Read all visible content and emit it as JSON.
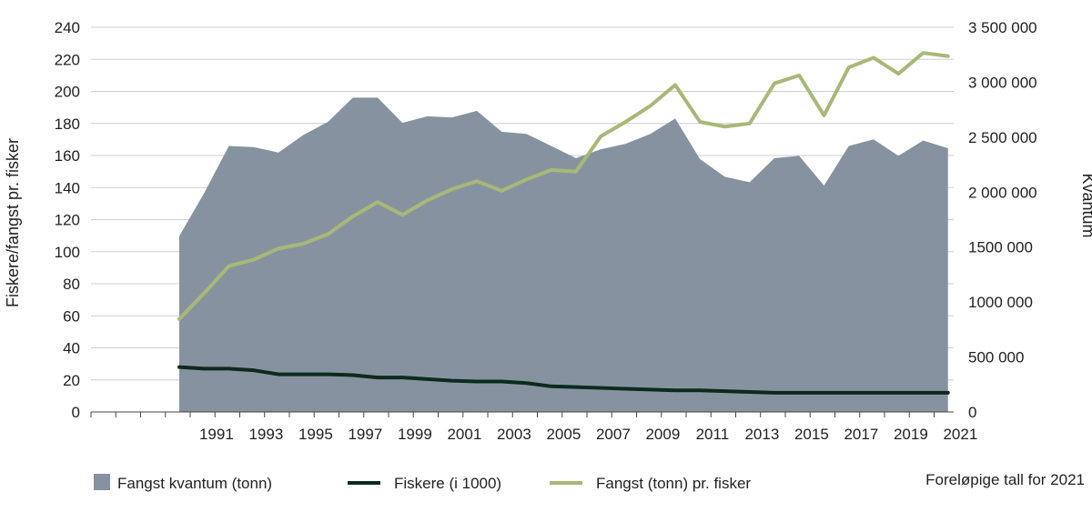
{
  "chart_data": {
    "type": "area+line",
    "years": [
      1990,
      1991,
      1992,
      1993,
      1994,
      1995,
      1996,
      1997,
      1998,
      1999,
      2000,
      2001,
      2002,
      2003,
      2004,
      2005,
      2006,
      2007,
      2008,
      2009,
      2010,
      2011,
      2012,
      2013,
      2014,
      2015,
      2016,
      2017,
      2018,
      2019,
      2020,
      2021
    ],
    "x_tick_labels": [
      "1991",
      "1993",
      "1995",
      "1997",
      "1999",
      "2001",
      "2003",
      "2005",
      "2007",
      "2009",
      "2011",
      "2013",
      "2015",
      "2017",
      "2019",
      "2021"
    ],
    "y_left": {
      "label": "Fiskere/fangst pr. fisker",
      "min": 0,
      "max": 240,
      "step": 20,
      "tick_labels": [
        "0",
        "20",
        "40",
        "60",
        "80",
        "100",
        "120",
        "140",
        "160",
        "180",
        "200",
        "220",
        "240"
      ]
    },
    "y_right": {
      "label": "Kvantum",
      "min": 0,
      "max": 3500000,
      "step": 500000,
      "tick_labels": [
        "0",
        "500 000",
        "1000 000",
        "1500 000",
        "2 000 000",
        "2 500 000",
        "3 000 000",
        "3 500 000"
      ]
    },
    "series": [
      {
        "name": "Fangst kvantum (tonn)",
        "type": "area",
        "axis": "right",
        "color": "#8792a0",
        "values": [
          1600000,
          1990000,
          2420000,
          2410000,
          2360000,
          2520000,
          2640000,
          2860000,
          2860000,
          2630000,
          2690000,
          2680000,
          2740000,
          2550000,
          2530000,
          2420000,
          2310000,
          2390000,
          2440000,
          2530000,
          2670000,
          2300000,
          2140000,
          2090000,
          2310000,
          2330000,
          2060000,
          2420000,
          2480000,
          2330000,
          2470000,
          2400000
        ]
      },
      {
        "name": "Fiskere (i 1000)",
        "type": "line",
        "axis": "left",
        "color": "#0d2a1e",
        "values": [
          28,
          27,
          27,
          26,
          23.5,
          23.5,
          23.5,
          23,
          21.5,
          21.5,
          20.5,
          19.5,
          19,
          19,
          18,
          16,
          15.5,
          15,
          14.5,
          14,
          13.5,
          13.5,
          13,
          12.5,
          12,
          12,
          12,
          12,
          12,
          12,
          12,
          12
        ]
      },
      {
        "name": "Fangst (tonn) pr. fisker",
        "type": "line",
        "axis": "left",
        "color": "#a8b877",
        "values": [
          58,
          74,
          91,
          95,
          102,
          105,
          111,
          122,
          131,
          123,
          132,
          139,
          144,
          138,
          145,
          151,
          150,
          172,
          181,
          191,
          204,
          181,
          178,
          180,
          205,
          210,
          185,
          215,
          221,
          211,
          224,
          222
        ]
      }
    ],
    "note": "Foreløpige tall for 2021"
  }
}
